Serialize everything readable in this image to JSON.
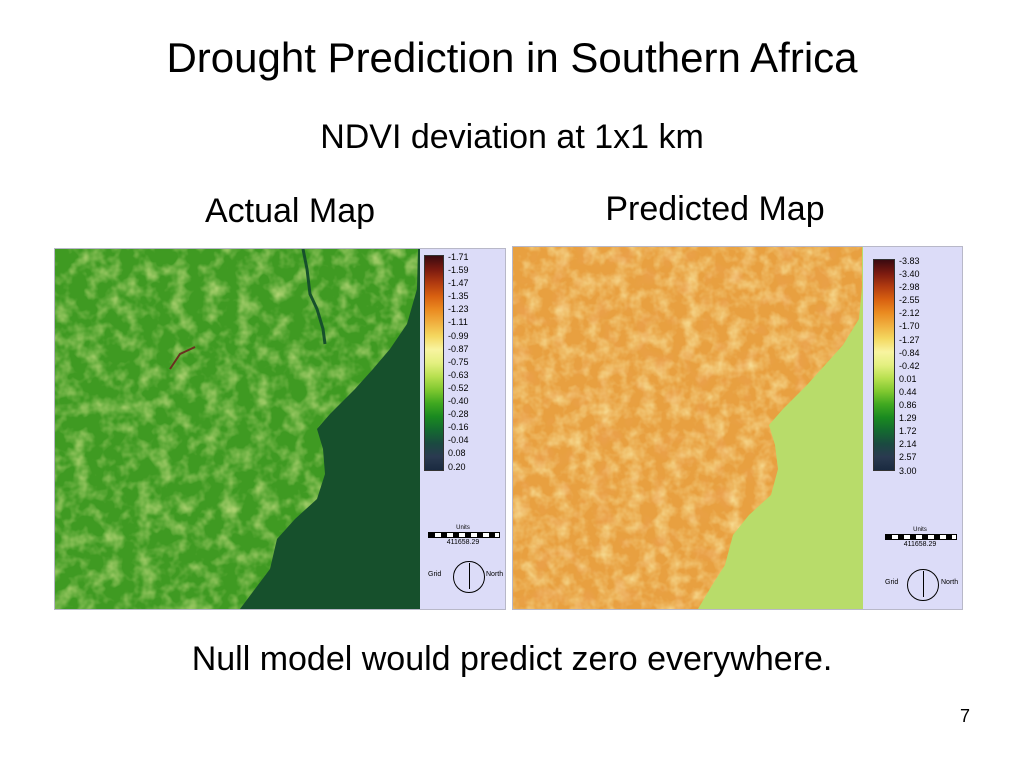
{
  "slide": {
    "title": "Drought Prediction in Southern Africa",
    "subtitle": "NDVI deviation at 1x1 km",
    "footer": "Null model would predict zero everywhere.",
    "page_number": "7"
  },
  "actual_map": {
    "label": "Actual Map",
    "legend_values": [
      "-1.71",
      "-1.59",
      "-1.47",
      "-1.35",
      "-1.23",
      "-1.11",
      "-0.99",
      "-0.87",
      "-0.75",
      "-0.63",
      "-0.52",
      "-0.40",
      "-0.28",
      "-0.16",
      "-0.04",
      "0.08",
      "0.20"
    ],
    "units_label": "Units",
    "scale_value": "411658.29",
    "grid_label": "Grid",
    "north_label": "North",
    "colors": {
      "land": "#3f9a22",
      "ocean": "#16502c"
    }
  },
  "predicted_map": {
    "label": "Predicted Map",
    "legend_values": [
      "-3.83",
      "-3.40",
      "-2.98",
      "-2.55",
      "-2.12",
      "-1.70",
      "-1.27",
      "-0.84",
      "-0.42",
      "0.01",
      "0.44",
      "0.86",
      "1.29",
      "1.72",
      "2.14",
      "2.57",
      "3.00"
    ],
    "units_label": "Units",
    "scale_value": "411658.29",
    "grid_label": "Grid",
    "north_label": "North",
    "colors": {
      "land": "#e8a040",
      "ocean": "#b8dc6a"
    }
  },
  "colorbar": [
    "#3a0a10",
    "#7a1a10",
    "#b03a10",
    "#d86010",
    "#ea8a20",
    "#f0b040",
    "#f4d860",
    "#f8f4a0",
    "#e4f080",
    "#b8e050",
    "#80c830",
    "#40a820",
    "#1a8a20",
    "#146a30",
    "#1a4a40",
    "#2a3a50",
    "#1a2a40"
  ]
}
